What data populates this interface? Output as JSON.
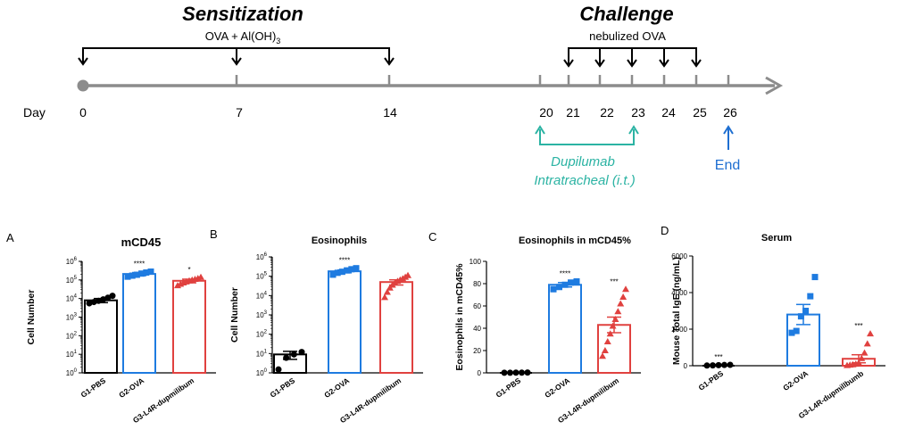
{
  "timeline": {
    "day_label": "Day",
    "sensitization_title": "Sensitization",
    "sensitization_agent": "OVA + Al(OH)",
    "sensitization_agent_sub": "3",
    "sensitization_days": [
      "0",
      "7",
      "14"
    ],
    "challenge_title": "Challenge",
    "challenge_agent": "nebulized OVA",
    "challenge_days": [
      "20",
      "21",
      "22",
      "23",
      "24",
      "25",
      "26"
    ],
    "treatment_line1": "Dupilumab",
    "treatment_line2": "Intratracheal (i.t.)",
    "end_label": "End",
    "colors": {
      "axis": "#8c8c8c",
      "treatment": "#2bb3a3",
      "end": "#1f6fd1"
    }
  },
  "colors": {
    "G1": "#000000",
    "G2": "#1e7be0",
    "G3": "#e0413f"
  },
  "chart_data": [
    {
      "panel": "A",
      "type": "bar",
      "title": "mCD45",
      "ylabel": "Cell Number",
      "yscale": "log",
      "ylim": [
        1,
        1000000
      ],
      "ytick_base": "10",
      "ytick_exps": [
        "0",
        "1",
        "2",
        "3",
        "4",
        "5",
        "6"
      ],
      "categories": [
        "G1-PBS",
        "G2-OVA",
        "G3-L4R-dupmilibum"
      ],
      "values": [
        8000,
        210000,
        90000
      ],
      "errors": [
        2000,
        40000,
        20000
      ],
      "significance": [
        "",
        "****",
        "*"
      ],
      "points": [
        [
          5500,
          6500,
          7500,
          9000,
          11000,
          14000
        ],
        [
          150000,
          170000,
          190000,
          220000,
          250000,
          280000
        ],
        [
          50000,
          60000,
          70000,
          80000,
          90000,
          100000,
          110000,
          120000,
          140000
        ]
      ]
    },
    {
      "panel": "B",
      "type": "bar",
      "title": "Eosinophils",
      "ylabel": "Cell Number",
      "yscale": "log",
      "ylim": [
        1,
        1000000
      ],
      "ytick_base": "10",
      "ytick_exps": [
        "0",
        "1",
        "2",
        "3",
        "4",
        "5",
        "6"
      ],
      "categories": [
        "G1-PBS",
        "G2-OVA",
        "G3-L4R-dupmilibum"
      ],
      "values": [
        9,
        180000,
        50000
      ],
      "errors": [
        4,
        30000,
        15000
      ],
      "significance": [
        "",
        "****",
        ""
      ],
      "points": [
        [
          1.5,
          6,
          9,
          12
        ],
        [
          120000,
          150000,
          170000,
          200000,
          230000,
          260000
        ],
        [
          8000,
          15000,
          25000,
          35000,
          45000,
          55000,
          65000,
          75000,
          90000,
          110000
        ]
      ]
    },
    {
      "panel": "C",
      "type": "bar",
      "title": "Eosinophils in mCD45%",
      "ylabel": "Eosinophils in mCD45%",
      "yscale": "linear",
      "ylim": [
        0,
        100
      ],
      "yticks": [
        "0",
        "20",
        "40",
        "60",
        "80",
        "100"
      ],
      "categories": [
        "G1-PBS",
        "G2-OVA",
        "G3-L4R-dupmilibum"
      ],
      "values": [
        0.2,
        79,
        43
      ],
      "errors": [
        0.1,
        2,
        7
      ],
      "significance": [
        "",
        "****",
        "***"
      ],
      "points": [
        [
          0.1,
          0.1,
          0.2,
          0.2,
          0.3
        ],
        [
          75,
          77,
          79,
          81,
          82
        ],
        [
          15,
          20,
          28,
          35,
          42,
          48,
          55,
          62,
          68,
          75
        ]
      ]
    },
    {
      "panel": "D",
      "type": "bar",
      "title": "Serum",
      "ylabel": "Mouse Total IgE (ng/mL)",
      "yscale": "linear",
      "ylim": [
        0,
        6000
      ],
      "yticks": [
        "0",
        "2000",
        "4000",
        "6000"
      ],
      "categories": [
        "G1-PBS",
        "G2-OVA",
        "G3-L4R-dupmillbumb"
      ],
      "values": [
        40,
        2800,
        380
      ],
      "errors": [
        20,
        550,
        220
      ],
      "significance": [
        "***",
        "",
        "***"
      ],
      "points": [
        [
          10,
          20,
          30,
          40,
          50
        ],
        [
          1800,
          1900,
          2700,
          3000,
          3800,
          4850
        ],
        [
          20,
          40,
          60,
          90,
          150,
          400,
          700,
          1200,
          1750
        ]
      ]
    }
  ]
}
